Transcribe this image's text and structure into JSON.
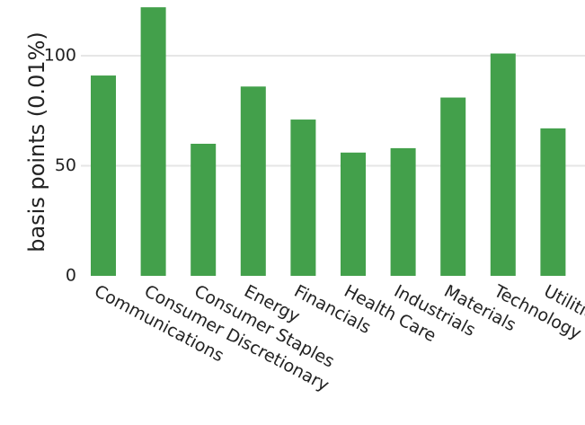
{
  "chart_data": {
    "type": "bar",
    "categories": [
      "Communications",
      "Consumer Discretionary",
      "Consumer Staples",
      "Energy",
      "Financials",
      "Health Care",
      "Industrials",
      "Materials",
      "Technology",
      "Utilities"
    ],
    "values": [
      91,
      122,
      60,
      86,
      71,
      56,
      58,
      81,
      101,
      67
    ],
    "xlabel": "",
    "ylabel": "basis points (0.01%)",
    "ylim": [
      0,
      122
    ],
    "yticks": [
      0,
      50,
      100
    ],
    "bar_color": "#43a04b",
    "grid": true,
    "legend": "none"
  }
}
